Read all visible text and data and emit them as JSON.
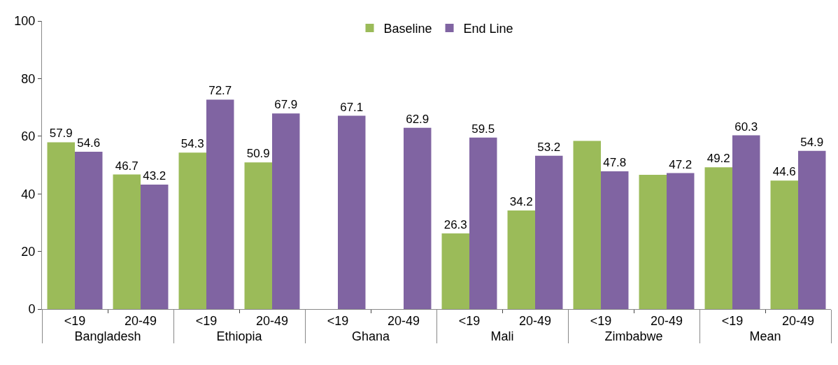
{
  "chart_data": {
    "type": "bar",
    "categories": [
      "<19",
      "20-49",
      "<19",
      "20-49",
      "<19",
      "20-49",
      "<19",
      "20-49",
      "<19",
      "20-49",
      "<19",
      "20-49"
    ],
    "annotations": [
      "Bangladesh",
      "Ethiopia",
      "Ghana",
      "Mali",
      "Zimbabwe",
      "Mean"
    ],
    "series": [
      {
        "name": "Baseline",
        "color": "#9bbb59",
        "values": [
          57.9,
          46.7,
          54.3,
          50.9,
          null,
          null,
          26.3,
          34.2,
          58.4,
          46.6,
          49.2,
          44.6
        ],
        "value_labels": [
          "57.9",
          "46.7",
          "54.3",
          "50.9",
          null,
          null,
          "26.3",
          "34.2",
          null,
          null,
          "49.2",
          "44.6"
        ]
      },
      {
        "name": "End Line",
        "color": "#8064a2",
        "values": [
          54.6,
          43.2,
          72.7,
          67.9,
          67.1,
          62.9,
          59.5,
          53.2,
          47.8,
          47.2,
          60.3,
          54.9
        ],
        "value_labels": [
          "54.6",
          "43.2",
          "72.7",
          "67.9",
          "67.1",
          "62.9",
          "59.5",
          "53.2",
          "47.8",
          "47.2",
          "60.3",
          "54.9"
        ]
      }
    ],
    "ylim": [
      0,
      100
    ],
    "yticks": [
      0,
      20,
      40,
      60,
      80,
      100
    ],
    "legend": "top"
  }
}
